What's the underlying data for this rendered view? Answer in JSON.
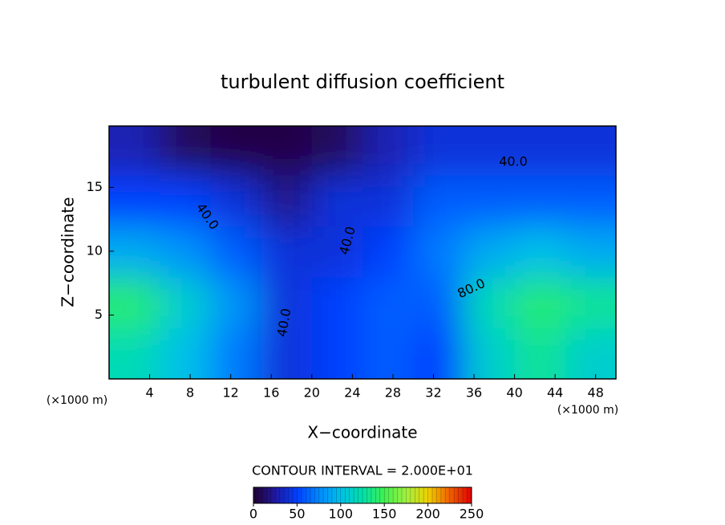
{
  "chart_data": {
    "type": "heatmap",
    "title": "turbulent diffusion coefficient",
    "xlabel": "X−coordinate",
    "ylabel": "Z−coordinate",
    "x_unit_left": "(×1000 m)",
    "x_unit_right": "(×1000 m)",
    "xlim": [
      0,
      50
    ],
    "ylim": [
      0,
      19.8
    ],
    "xticks": [
      4,
      8,
      12,
      16,
      20,
      24,
      28,
      32,
      36,
      40,
      44,
      48
    ],
    "yticks": [
      5,
      10,
      15
    ],
    "x": [
      2.5,
      7.5,
      12.5,
      17.5,
      22.5,
      27.5,
      32.5,
      37.5,
      42.5,
      47.5
    ],
    "y": [
      2,
      6,
      10,
      14,
      18
    ],
    "z": [
      [
        120,
        100,
        70,
        40,
        50,
        60,
        50,
        110,
        130,
        110
      ],
      [
        140,
        110,
        80,
        40,
        50,
        60,
        60,
        120,
        140,
        130
      ],
      [
        90,
        80,
        60,
        40,
        40,
        50,
        70,
        90,
        100,
        90
      ],
      [
        50,
        50,
        40,
        20,
        40,
        40,
        60,
        60,
        60,
        60
      ],
      [
        30,
        10,
        5,
        5,
        10,
        30,
        40,
        40,
        40,
        40
      ]
    ],
    "contour_labels": [
      "40.0",
      "40.0",
      "40.0",
      "40.0",
      "80.0"
    ],
    "colorbar_title": "CONTOUR INTERVAL = 2.000E+01",
    "clim": [
      0,
      250
    ],
    "colorbar_ticks": [
      0,
      50,
      100,
      150,
      200,
      250
    ],
    "colormap": [
      "#200030",
      "#2018a0",
      "#0040ff",
      "#0088ff",
      "#00c0e8",
      "#00e0a8",
      "#40f050",
      "#a0f040",
      "#f0d000",
      "#f06000",
      "#e00000"
    ]
  }
}
